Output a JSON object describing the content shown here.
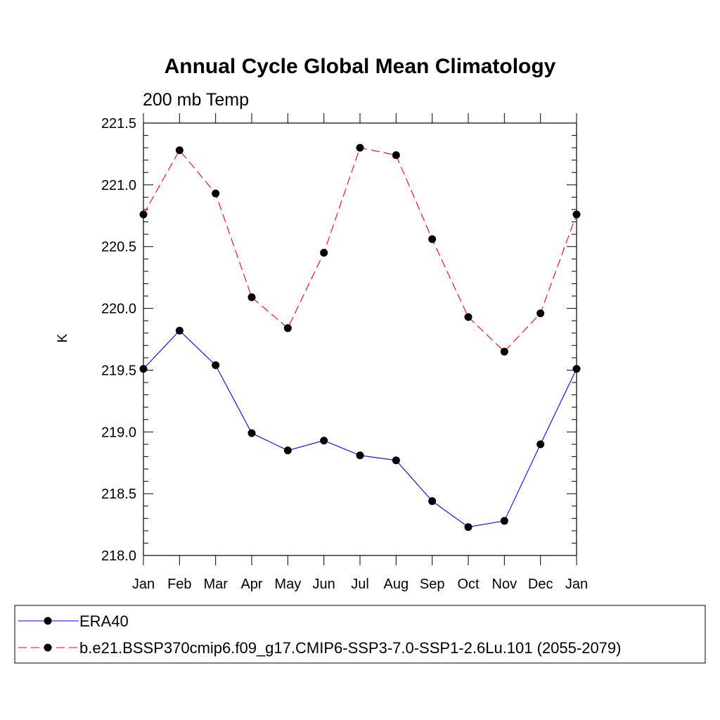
{
  "chart_data": {
    "type": "line",
    "title": "Annual Cycle Global Mean Climatology",
    "subtitle": "200 mb Temp",
    "xlabel": "",
    "ylabel": "K",
    "categories": [
      "Jan",
      "Feb",
      "Mar",
      "Apr",
      "May",
      "Jun",
      "Jul",
      "Aug",
      "Sep",
      "Oct",
      "Nov",
      "Dec",
      "Jan"
    ],
    "ylim": [
      218.0,
      221.5
    ],
    "yticks": [
      "218.0",
      "218.5",
      "219.0",
      "219.5",
      "220.0",
      "220.5",
      "221.0",
      "221.5"
    ],
    "grid": false,
    "legend_position": "bottom",
    "series": [
      {
        "name": "ERA40",
        "color": "#0000ff",
        "dash": "solid",
        "values": [
          219.51,
          219.82,
          219.54,
          218.99,
          218.85,
          218.93,
          218.81,
          218.77,
          218.44,
          218.23,
          218.28,
          218.9,
          219.51
        ]
      },
      {
        "name": "b.e21.BSSP370cmip6.f09_g17.CMIP6-SSP3-7.0-SSP1-2.6Lu.101 (2055-2079)",
        "color": "#ff0000",
        "dash": "dashed",
        "values": [
          220.76,
          221.28,
          220.93,
          220.09,
          219.84,
          220.45,
          221.3,
          221.24,
          220.56,
          219.93,
          219.65,
          219.96,
          220.76
        ]
      }
    ]
  }
}
